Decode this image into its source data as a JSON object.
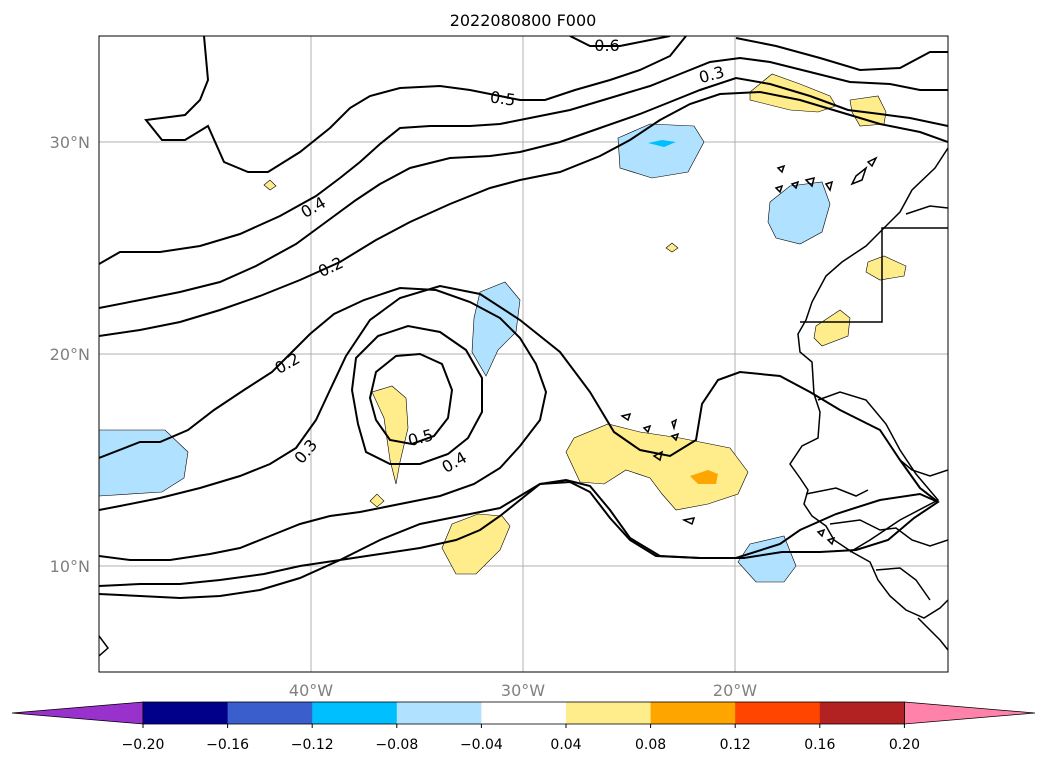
{
  "map": {
    "title": "2022080800 F000",
    "lat_labels": [
      "30°N",
      "20°N",
      "10°N"
    ],
    "lon_labels": [
      "40°W",
      "30°W",
      "20°W"
    ],
    "contour_labels": [
      "0.6",
      "0.5",
      "0.3",
      "0.4",
      "0.2",
      "0.2",
      "0.3",
      "0.5",
      "0.4"
    ],
    "contour_levels": [
      0.2,
      0.3,
      0.4,
      0.5,
      0.6
    ],
    "line_color": "#000000",
    "grid_color": "#b0b0b0"
  },
  "colorbar": {
    "tick_labels": [
      "−0.20",
      "−0.16",
      "−0.12",
      "−0.08",
      "−0.04",
      "0.04",
      "0.08",
      "0.12",
      "0.16",
      "0.20"
    ],
    "colors": [
      "#9932cc",
      "#00008b",
      "#3a5fcd",
      "#00bfff",
      "#b0e2ff",
      "#ffffff",
      "#ffec8b",
      "#ffa500",
      "#ff4500",
      "#b22222",
      "#ff82ab"
    ]
  }
}
